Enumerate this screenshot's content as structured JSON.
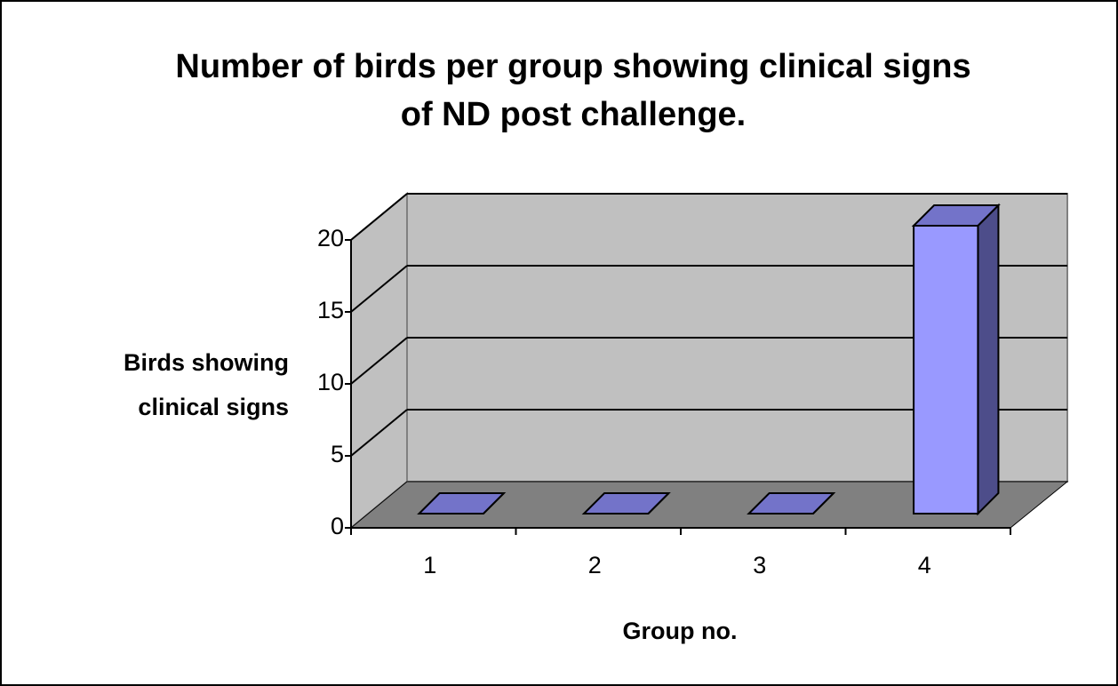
{
  "chart_data": {
    "type": "bar3d",
    "title": [
      "Number of birds per group showing clinical signs",
      "of ND post challenge."
    ],
    "y_label": [
      "Birds showing",
      "clinical signs"
    ],
    "x_label": "Group no.",
    "categories": [
      "1",
      "2",
      "3",
      "4"
    ],
    "values": [
      0,
      0,
      0,
      20
    ],
    "color": "#9999ff",
    "ylim": [
      0,
      20
    ],
    "yticks": [
      0,
      5,
      10,
      15,
      20
    ],
    "grid": true
  }
}
